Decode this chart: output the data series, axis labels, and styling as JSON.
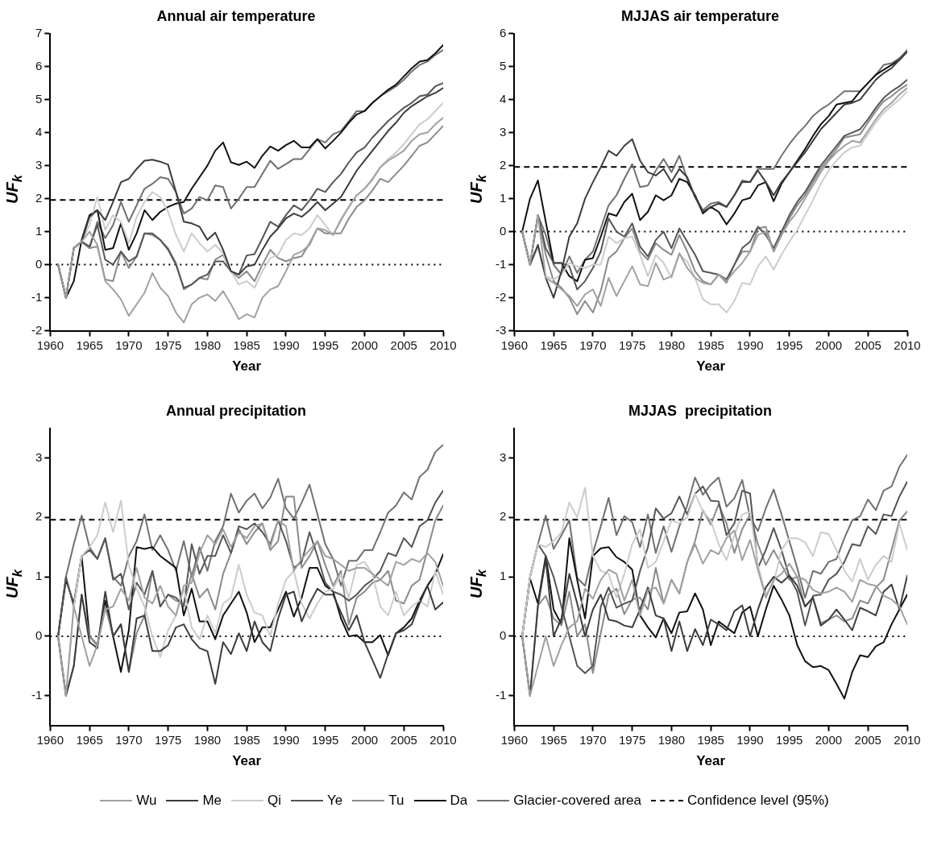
{
  "chart_data": [
    {
      "type": "line",
      "title": "Annual air temperature",
      "xlabel": "Year",
      "ylabel": "UF$_{k}$",
      "x": [
        1961,
        1962,
        1963,
        1964,
        1965,
        1966,
        1967,
        1968,
        1969,
        1970,
        1971,
        1972,
        1973,
        1974,
        1975,
        1976,
        1977,
        1978,
        1979,
        1980,
        1981,
        1982,
        1983,
        1984,
        1985,
        1986,
        1987,
        1988,
        1989,
        1990,
        1991,
        1992,
        1993,
        1994,
        1995,
        1996,
        1997,
        1998,
        1999,
        2000,
        2001,
        2002,
        2003,
        2004,
        2005,
        2006,
        2007,
        2008,
        2009,
        2010
      ],
      "xlim": [
        1960,
        2010
      ],
      "xticks": [
        1960,
        1965,
        1970,
        1975,
        1980,
        1985,
        1990,
        1995,
        2000,
        2005,
        2010
      ],
      "ylim": [
        -2,
        7
      ],
      "yticks": [
        -2,
        -1,
        0,
        1,
        2,
        3,
        4,
        5,
        6,
        7
      ],
      "grid": false,
      "legend": "bottom",
      "marker": "none",
      "series": [
        {
          "name": "Wu",
          "color": "#a0a0a0",
          "values": [
            0,
            -1,
            0.5,
            0.7,
            1.0,
            0.6,
            -0.5,
            -0.75,
            -1.05,
            -1.55,
            -1.2,
            -0.85,
            -0.25,
            -0.7,
            -0.95,
            -1.45,
            -1.75,
            -1.2,
            -1.0,
            -0.9,
            -1.1,
            -0.8,
            -1.2,
            -1.65,
            -1.5,
            -1.6,
            -1.0,
            -0.75,
            -0.65,
            -0.2,
            0.3,
            0.4,
            0.6,
            1.1,
            1.05,
            0.9,
            1.35,
            1.75,
            2.1,
            2.3,
            2.6,
            2.95,
            3.15,
            3.3,
            3.45,
            3.75,
            3.95,
            4.0,
            4.25,
            4.45
          ]
        },
        {
          "name": "Me",
          "color": "#3c3c3c",
          "values": [
            0,
            -1,
            0.5,
            0.7,
            1.45,
            1.65,
            1.35,
            1.9,
            2.5,
            2.6,
            2.9,
            3.15,
            3.18,
            3.12,
            3.03,
            2.2,
            1.3,
            1.25,
            1.15,
            0.75,
            0.97,
            0.45,
            -0.2,
            -0.3,
            -0.05,
            0,
            0.45,
            0.85,
            1.1,
            1.4,
            1.55,
            1.45,
            1.65,
            1.9,
            1.65,
            1.85,
            2.05,
            2.45,
            2.85,
            3.15,
            3.45,
            3.75,
            4.05,
            4.3,
            4.6,
            4.8,
            4.95,
            5.1,
            5.2,
            5.35
          ]
        },
        {
          "name": "Qi",
          "color": "#cccccc",
          "values": [
            0,
            -1,
            0.5,
            0.7,
            1.2,
            2.05,
            1.05,
            1.5,
            1.3,
            0.65,
            1.45,
            1.9,
            2.2,
            2.05,
            1.6,
            0.9,
            0.4,
            0.95,
            0.65,
            0.4,
            0.6,
            0.35,
            -0.2,
            -0.6,
            -0.5,
            -0.7,
            -0.2,
            0.2,
            0.3,
            0.75,
            0.95,
            0.9,
            1.1,
            1.5,
            1.2,
            0.9,
            1.4,
            1.75,
            2.1,
            2.3,
            2.55,
            2.95,
            3.2,
            3.4,
            3.65,
            3.95,
            4.25,
            4.4,
            4.65,
            4.9
          ]
        },
        {
          "name": "Ye",
          "color": "#555555",
          "values": [
            0,
            -1,
            0.5,
            0.7,
            0.55,
            1.2,
            0.15,
            0,
            0.4,
            0.1,
            0.25,
            0.95,
            0.95,
            0.75,
            0.45,
            0,
            -0.7,
            -0.6,
            -0.4,
            -0.3,
            0.1,
            0.1,
            -0.2,
            -0.3,
            0.28,
            0.32,
            0.8,
            1.3,
            1.15,
            1.5,
            1.8,
            1.65,
            1.95,
            2.3,
            2.2,
            2.5,
            2.75,
            3.1,
            3.4,
            3.55,
            3.85,
            4.1,
            4.35,
            4.55,
            4.75,
            4.9,
            5.1,
            5.15,
            5.4,
            5.5
          ]
        },
        {
          "name": "Tu",
          "color": "#8a8a8a",
          "values": [
            0,
            -1,
            0.5,
            0.7,
            0.5,
            0.55,
            -0.45,
            -0.5,
            0.4,
            -0.1,
            0.25,
            0.95,
            0.9,
            0.75,
            0.5,
            0.05,
            -0.75,
            -0.6,
            -0.4,
            -0.45,
            0.15,
            0.3,
            -0.2,
            -0.4,
            -0.2,
            -0.5,
            0,
            0.45,
            0.2,
            0.1,
            0.2,
            0.25,
            0.65,
            1.1,
            0.95,
            0.95,
            0.95,
            1.4,
            1.75,
            1.95,
            2.25,
            2.6,
            2.5,
            2.75,
            3.0,
            3.3,
            3.6,
            3.7,
            3.95,
            4.2
          ]
        },
        {
          "name": "Da",
          "color": "#111111",
          "values": [
            0,
            -1,
            -0.5,
            0.75,
            1.5,
            1.65,
            0.45,
            0.5,
            1.25,
            0.45,
            0.95,
            1.65,
            1.35,
            1.6,
            1.75,
            1.85,
            1.9,
            2.3,
            2.65,
            3.0,
            3.45,
            3.7,
            3.1,
            3.02,
            3.12,
            2.93,
            3.3,
            3.58,
            3.45,
            3.62,
            3.75,
            3.55,
            3.55,
            3.8,
            3.52,
            3.75,
            4.0,
            4.3,
            4.55,
            4.65,
            4.9,
            5.1,
            5.3,
            5.45,
            5.7,
            5.95,
            6.15,
            6.2,
            6.4,
            6.65
          ]
        },
        {
          "name": "Glacier-covered area",
          "color": "#707070",
          "values": [
            0,
            -1,
            0.5,
            0.7,
            0.5,
            1.3,
            0.8,
            1.2,
            1.9,
            1.3,
            1.8,
            2.3,
            2.45,
            2.65,
            2.6,
            2.2,
            1.55,
            1.7,
            2.05,
            1.95,
            2.4,
            2.35,
            1.7,
            2.0,
            2.35,
            2.35,
            2.75,
            3.15,
            2.9,
            3.05,
            3.2,
            3.2,
            3.5,
            3.8,
            3.7,
            3.95,
            4.05,
            4.35,
            4.65,
            4.65,
            4.9,
            5.1,
            5.25,
            5.4,
            5.6,
            5.85,
            6.05,
            6.15,
            6.35,
            6.5
          ]
        }
      ],
      "ref_lines": [
        {
          "axis": "y",
          "value": 1.96,
          "label": "Confidence level (95%)",
          "line_style": "dashed",
          "color": "#000000"
        },
        {
          "axis": "y",
          "value": 0,
          "line_style": "dotted",
          "color": "#000000"
        }
      ]
    },
    {
      "type": "line",
      "title": "MJJAS air temperature",
      "xlabel": "Year",
      "ylabel": "UF$_{k}$",
      "x": [
        1961,
        1962,
        1963,
        1964,
        1965,
        1966,
        1967,
        1968,
        1969,
        1970,
        1971,
        1972,
        1973,
        1974,
        1975,
        1976,
        1977,
        1978,
        1979,
        1980,
        1981,
        1982,
        1983,
        1984,
        1985,
        1986,
        1987,
        1988,
        1989,
        1990,
        1991,
        1992,
        1993,
        1994,
        1995,
        1996,
        1997,
        1998,
        1999,
        2000,
        2001,
        2002,
        2003,
        2004,
        2005,
        2006,
        2007,
        2008,
        2009,
        2010
      ],
      "xlim": [
        1960,
        2010
      ],
      "xticks": [
        1960,
        1965,
        1970,
        1975,
        1980,
        1985,
        1990,
        1995,
        2000,
        2005,
        2010
      ],
      "ylim": [
        -3,
        6
      ],
      "yticks": [
        -3,
        -2,
        -1,
        0,
        1,
        2,
        3,
        4,
        5,
        6
      ],
      "grid": false,
      "legend": false,
      "marker": "none",
      "series": [
        {
          "color": "#a0a0a0",
          "values": [
            0,
            -1,
            0.5,
            -1.4,
            -1.55,
            -1.75,
            -1.95,
            -2.25,
            -1.9,
            -1.75,
            -2.25,
            -1.4,
            -1.95,
            -1.5,
            -1.05,
            -1.6,
            -1.65,
            -0.95,
            -1.45,
            -1.35,
            -0.65,
            -1.1,
            -1.4,
            -1.55,
            -1.6,
            -1.3,
            -1.5,
            -1.2,
            -0.95,
            -0.6,
            -0.1,
            0,
            -0.6,
            -0.1,
            0.3,
            0.6,
            1.0,
            1.4,
            1.8,
            2.15,
            2.4,
            2.6,
            2.75,
            2.7,
            3.05,
            3.4,
            3.7,
            3.9,
            4.15,
            4.35
          ]
        },
        {
          "color": "#3c3c3c",
          "values": [
            0,
            -1,
            -0.4,
            -1.4,
            -2.0,
            -1.2,
            -0.15,
            0.25,
            1.0,
            1.5,
            1.95,
            2.45,
            2.3,
            2.6,
            2.8,
            2.15,
            1.8,
            1.7,
            1.9,
            1.5,
            1.9,
            1.65,
            1.05,
            0.6,
            0.75,
            0.85,
            0.75,
            1.1,
            1.5,
            1.5,
            1.85,
            1.5,
            1.1,
            1.5,
            1.8,
            2.1,
            2.4,
            2.75,
            3.1,
            3.35,
            3.6,
            3.85,
            3.9,
            4.0,
            4.3,
            4.6,
            4.8,
            4.95,
            5.2,
            5.45
          ]
        },
        {
          "color": "#cccccc",
          "values": [
            0,
            -1,
            -0.5,
            -1.35,
            -1.45,
            -1.3,
            -0.95,
            -1.05,
            -1.1,
            -1.0,
            -1.0,
            -0.15,
            -0.35,
            -0.2,
            -0.15,
            -0.7,
            -1.35,
            -0.7,
            -0.95,
            -1.4,
            -0.7,
            -0.9,
            -1.4,
            -2.05,
            -2.2,
            -2.2,
            -2.45,
            -2.1,
            -1.55,
            -1.6,
            -1.05,
            -0.75,
            -1.15,
            -0.7,
            -0.3,
            0.05,
            0.5,
            0.95,
            1.45,
            1.85,
            2.15,
            2.4,
            2.55,
            2.6,
            2.95,
            3.3,
            3.6,
            3.8,
            4.0,
            4.25
          ]
        },
        {
          "color": "#555555",
          "values": [
            0,
            -1,
            0.5,
            -0.5,
            -0.95,
            -0.95,
            -1.05,
            -1.75,
            -1.5,
            -1.1,
            -0.6,
            0.4,
            0,
            -0.15,
            0.25,
            -0.45,
            -0.75,
            -0.25,
            0,
            -0.5,
            0.1,
            -0.3,
            -0.7,
            -1.2,
            -1.25,
            -1.3,
            -1.45,
            -1.0,
            -0.5,
            -0.3,
            0.15,
            -0.1,
            -0.5,
            0,
            0.5,
            0.9,
            1.2,
            1.6,
            2.0,
            2.3,
            2.6,
            2.9,
            3.0,
            3.1,
            3.4,
            3.75,
            4.05,
            4.25,
            4.4,
            4.6
          ]
        },
        {
          "color": "#8a8a8a",
          "values": [
            0,
            -1,
            0.45,
            -0.7,
            -1.5,
            -1.7,
            -2.0,
            -2.5,
            -2.1,
            -2.45,
            -1.8,
            -0.8,
            -0.6,
            -0.2,
            0.1,
            -0.6,
            -0.85,
            -0.35,
            -0.55,
            -0.7,
            -0.1,
            -0.6,
            -1.2,
            -1.5,
            -1.6,
            -1.3,
            -1.55,
            -1.0,
            -0.6,
            -0.6,
            0.1,
            0.15,
            -0.6,
            -0.1,
            0.4,
            0.8,
            1.1,
            1.5,
            1.9,
            2.2,
            2.5,
            2.85,
            2.9,
            2.95,
            3.3,
            3.65,
            3.95,
            4.1,
            4.3,
            4.45
          ]
        },
        {
          "color": "#111111",
          "values": [
            0,
            1.0,
            1.55,
            0.3,
            -0.95,
            -0.95,
            -1.35,
            -1.5,
            -0.85,
            -0.8,
            -0.15,
            0.55,
            0.48,
            0.9,
            1.15,
            0.35,
            0.6,
            1.1,
            0.95,
            1.1,
            1.6,
            1.5,
            1.1,
            0.55,
            0.75,
            0.6,
            0.22,
            0.55,
            0.95,
            1.02,
            1.4,
            1.5,
            0.92,
            1.45,
            1.8,
            2.15,
            2.5,
            2.9,
            3.25,
            3.5,
            3.85,
            3.9,
            3.95,
            4.25,
            4.5,
            4.75,
            4.9,
            5.05,
            5.2,
            5.45
          ]
        },
        {
          "color": "#707070",
          "values": [
            0,
            -1,
            0.5,
            -0.1,
            -1.0,
            -1.3,
            -0.75,
            -1.25,
            -0.85,
            -0.6,
            0.1,
            0.8,
            1.1,
            1.6,
            2.05,
            1.35,
            1.4,
            1.85,
            2.2,
            1.8,
            2.3,
            1.6,
            1.05,
            0.65,
            0.85,
            0.9,
            0.75,
            1.1,
            1.55,
            1.5,
            1.9,
            1.9,
            1.9,
            2.3,
            2.65,
            2.95,
            3.2,
            3.5,
            3.7,
            3.85,
            4.05,
            4.25,
            4.25,
            4.25,
            4.5,
            4.75,
            5.05,
            5.1,
            5.25,
            5.5
          ]
        }
      ],
      "ref_lines": [
        {
          "axis": "y",
          "value": 1.96,
          "line_style": "dashed",
          "color": "#000000"
        },
        {
          "axis": "y",
          "value": 0,
          "line_style": "dotted",
          "color": "#000000"
        }
      ]
    },
    {
      "type": "line",
      "title": "Annual precipitation",
      "xlabel": "Year",
      "ylabel": "UF$_{k}$",
      "x": [
        1961,
        1962,
        1963,
        1964,
        1965,
        1966,
        1967,
        1968,
        1969,
        1970,
        1971,
        1972,
        1973,
        1974,
        1975,
        1976,
        1977,
        1978,
        1979,
        1980,
        1981,
        1982,
        1983,
        1984,
        1985,
        1986,
        1987,
        1988,
        1989,
        1990,
        1991,
        1992,
        1993,
        1994,
        1995,
        1996,
        1997,
        1998,
        1999,
        2000,
        2001,
        2002,
        2003,
        2004,
        2005,
        2006,
        2007,
        2008,
        2009,
        2010
      ],
      "xlim": [
        1960,
        2010
      ],
      "xticks": [
        1960,
        1965,
        1970,
        1975,
        1980,
        1985,
        1990,
        1995,
        2000,
        2005,
        2010
      ],
      "ylim": [
        -1.5,
        3.5
      ],
      "yticks": [
        -1,
        0,
        1,
        2,
        3
      ],
      "grid": false,
      "legend": false,
      "marker": "none",
      "series": [
        {
          "color": "#a0a0a0",
          "values": [
            0,
            -1,
            0.5,
            0,
            -0.5,
            -0.15,
            0.45,
            0.5,
            0.8,
            0.6,
            1.15,
            0.65,
            0.55,
            0.85,
            0.5,
            0.35,
            0.85,
            0.9,
            1.4,
            1.7,
            1.55,
            1.8,
            1.5,
            1.75,
            1.65,
            1.85,
            1.9,
            1.5,
            1.95,
            1.85,
            1.1,
            1.3,
            1.45,
            1.6,
            1.35,
            1.3,
            1.2,
            1.1,
            1.15,
            1.15,
            1.05,
            0.95,
            0.85,
            1.25,
            1.2,
            1.3,
            1.25,
            1.4,
            1.25,
            0.85
          ]
        },
        {
          "color": "#3c3c3c",
          "values": [
            0,
            -1,
            -0.5,
            0.7,
            -0.1,
            -0.2,
            0.75,
            0,
            0.2,
            -0.6,
            0.3,
            0.35,
            -0.25,
            -0.25,
            -0.15,
            0.15,
            0.2,
            -0.05,
            -0.2,
            -0.25,
            -0.8,
            -0.1,
            -0.3,
            0.05,
            -0.25,
            0.25,
            -0.1,
            -0.25,
            0.3,
            0.7,
            0.75,
            0.25,
            0.55,
            0.8,
            0.7,
            0.7,
            0.4,
            0.1,
            0.35,
            -0.1,
            -0.4,
            -0.7,
            -0.3,
            0.05,
            0.1,
            0.2,
            0.55,
            0.85,
            0.45,
            0.57
          ]
        },
        {
          "color": "#cccccc",
          "values": [
            0,
            -1,
            0.5,
            1.35,
            1.5,
            1.7,
            2.25,
            1.75,
            2.28,
            1.2,
            0.8,
            0.5,
            0,
            -0.35,
            0.1,
            0.35,
            0.8,
            0.15,
            -0.05,
            0.35,
            0.05,
            0.55,
            0.65,
            1.2,
            0.7,
            0.4,
            0.35,
            0,
            0.55,
            0.95,
            1.1,
            0.55,
            0.3,
            0.55,
            0.75,
            0.8,
            1.05,
            0.65,
            1.2,
            1.25,
            1.05,
            0.5,
            0.35,
            0.75,
            0.35,
            0.5,
            0.6,
            0.5,
            1.1,
            0.7
          ]
        },
        {
          "color": "#555555",
          "values": [
            0,
            1.0,
            0.5,
            1.35,
            1.45,
            1.3,
            1.65,
            0.95,
            1.05,
            0.45,
            0.9,
            0.7,
            1.1,
            0.5,
            0.7,
            0.65,
            0.5,
            1.55,
            1.05,
            1.35,
            1.35,
            1.7,
            1.4,
            1.85,
            1.8,
            1.9,
            1.75,
            1.55,
            1.95,
            1.6,
            1.15,
            1.25,
            1.75,
            1.35,
            0.9,
            0.75,
            0.7,
            0.6,
            0.7,
            0.85,
            0.95,
            1.1,
            1.4,
            1.35,
            1.65,
            1.5,
            1.85,
            1.95,
            2.25,
            2.45
          ]
        },
        {
          "color": "#8a8a8a",
          "values": [
            0,
            -1,
            -0.5,
            0.7,
            0,
            -0.15,
            0.5,
            0,
            0.2,
            -0.6,
            0.05,
            0.35,
            1.1,
            0.5,
            0.7,
            0.6,
            0.55,
            1.05,
            0.65,
            0.8,
            0.45,
            1.05,
            1.4,
            1.8,
            1.55,
            1.75,
            1.9,
            1.45,
            1.6,
            2.35,
            2.35,
            1.15,
            1.35,
            1.6,
            1.2,
            0.85,
            1.1,
            0.2,
            0.65,
            0.75,
            0.9,
            0.95,
            1.1,
            0.6,
            0.55,
            0.85,
            0.95,
            1.45,
            1.95,
            2.2
          ]
        },
        {
          "color": "#111111",
          "values": [
            0,
            0.95,
            0.55,
            1.35,
            0,
            -0.15,
            0.6,
            0,
            -0.6,
            0.1,
            1.5,
            1.47,
            1.5,
            1.35,
            1.25,
            1.15,
            0.35,
            0.8,
            0.25,
            0.25,
            -0.05,
            0.35,
            0.55,
            0.75,
            0.4,
            -0.1,
            0.15,
            0.15,
            0.45,
            0.75,
            0.33,
            0.65,
            1.15,
            1.15,
            0.85,
            0.75,
            0.3,
            0,
            0.02,
            -0.1,
            -0.1,
            0.02,
            -0.32,
            0.05,
            0.15,
            0.3,
            0.6,
            0.85,
            1.05,
            1.38
          ]
        },
        {
          "color": "#707070",
          "values": [
            0,
            1.0,
            1.55,
            2.03,
            1.5,
            1.3,
            1.65,
            1.0,
            0.85,
            1.35,
            1.6,
            2.05,
            1.45,
            1.7,
            1.45,
            1.1,
            1.6,
            1.0,
            1.5,
            1.1,
            1.6,
            1.85,
            2.4,
            2.08,
            2.28,
            2.4,
            2.15,
            2.33,
            2.65,
            2.15,
            1.98,
            2.25,
            2.55,
            2.05,
            1.55,
            1.3,
            0.85,
            1.27,
            1.27,
            1.45,
            1.45,
            1.75,
            2.08,
            2.2,
            2.42,
            2.3,
            2.68,
            2.8,
            3.1,
            3.22
          ]
        }
      ],
      "ref_lines": [
        {
          "axis": "y",
          "value": 1.96,
          "line_style": "dashed",
          "color": "#000000"
        },
        {
          "axis": "y",
          "value": 0,
          "line_style": "dotted",
          "color": "#000000"
        }
      ]
    },
    {
      "type": "line",
      "title": "MJJAS  precipitation",
      "xlabel": "Year",
      "ylabel": "UF$_{k}$",
      "x": [
        1961,
        1962,
        1963,
        1964,
        1965,
        1966,
        1967,
        1968,
        1969,
        1970,
        1971,
        1972,
        1973,
        1974,
        1975,
        1976,
        1977,
        1978,
        1979,
        1980,
        1981,
        1982,
        1983,
        1984,
        1985,
        1986,
        1987,
        1988,
        1989,
        1990,
        1991,
        1992,
        1993,
        1994,
        1995,
        1996,
        1997,
        1998,
        1999,
        2000,
        2001,
        2002,
        2003,
        2004,
        2005,
        2006,
        2007,
        2008,
        2009,
        2010
      ],
      "xlim": [
        1960,
        2010
      ],
      "xticks": [
        1960,
        1965,
        1970,
        1975,
        1980,
        1985,
        1990,
        1995,
        2000,
        2005,
        2010
      ],
      "ylim": [
        -1.5,
        3.5
      ],
      "yticks": [
        -1,
        0,
        1,
        2,
        3
      ],
      "grid": false,
      "legend": false,
      "marker": "none",
      "series": [
        {
          "color": "#a0a0a0",
          "values": [
            0,
            -1,
            -0.5,
            0,
            -0.5,
            -0.15,
            0.15,
            0.25,
            0.8,
            0.63,
            0.95,
            1.12,
            1.05,
            0.6,
            0.95,
            0.35,
            0.78,
            0.82,
            0.55,
            0.95,
            0.72,
            1.25,
            1.55,
            1.22,
            1.45,
            1.38,
            1.65,
            1.78,
            1.28,
            1.62,
            1.12,
            0.65,
            0.95,
            1.05,
            1.22,
            1.0,
            0.95,
            0.78,
            0.72,
            0.75,
            0.82,
            0.75,
            0.58,
            0.95,
            0.88,
            0.85,
            0.68,
            0.62,
            0.5,
            0.2
          ]
        },
        {
          "color": "#3c3c3c",
          "values": [
            0,
            -1,
            0.5,
            1.3,
            0,
            0.3,
            1.05,
            0.55,
            0,
            0.45,
            0.7,
            0.28,
            0.25,
            0.18,
            0.15,
            0.45,
            0.82,
            0.35,
            0.3,
            -0.25,
            0.25,
            -0.25,
            0.12,
            -0.15,
            0.28,
            0.2,
            0.1,
            0.42,
            0.52,
            0.0,
            0.45,
            0.82,
            1.0,
            0.9,
            1.02,
            0.85,
            0.5,
            0.65,
            0.18,
            0.28,
            0.45,
            0.28,
            0.1,
            0.48,
            0.42,
            0.35,
            0.75,
            0.87,
            0.45,
            1.02
          ]
        },
        {
          "color": "#cccccc",
          "values": [
            0,
            1.0,
            1.55,
            1.5,
            1.6,
            1.75,
            2.25,
            2.0,
            2.5,
            1.35,
            1.1,
            1.05,
            0.65,
            1.05,
            1.55,
            1.8,
            1.15,
            1.25,
            1.6,
            1.95,
            1.9,
            2.0,
            2.4,
            2.1,
            1.95,
            1.55,
            1.28,
            1.7,
            2.05,
            2.1,
            1.2,
            0.7,
            0.9,
            1.45,
            1.65,
            1.65,
            1.58,
            1.35,
            1.75,
            1.72,
            1.45,
            1.1,
            0.92,
            1.3,
            0.95,
            1.2,
            1.35,
            1.25,
            1.9,
            1.45
          ]
        },
        {
          "color": "#555555",
          "values": [
            0,
            1.0,
            1.55,
            1.35,
            1.0,
            0.5,
            0.0,
            -0.5,
            -0.62,
            -0.5,
            0.5,
            0.82,
            0.48,
            0.55,
            0.6,
            1.1,
            1.5,
            2.15,
            1.98,
            2.07,
            2.35,
            2.05,
            2.4,
            2.52,
            2.28,
            2.27,
            1.7,
            1.9,
            2.45,
            2.4,
            1.15,
            1.45,
            1.82,
            1.45,
            1.0,
            0.75,
            0.18,
            0.68,
            0.7,
            0.95,
            1.05,
            1.25,
            1.55,
            1.52,
            1.85,
            1.72,
            2.05,
            2.02,
            2.35,
            2.6
          ]
        },
        {
          "color": "#8a8a8a",
          "values": [
            0,
            -1,
            0.52,
            0.68,
            0.3,
            0.18,
            0.75,
            0.0,
            0.2,
            -0.62,
            0.05,
            0.7,
            0.8,
            0.37,
            0.62,
            0.65,
            0.45,
            1.15,
            0.55,
            0.95,
            0.72,
            1.25,
            1.6,
            2.12,
            1.88,
            2.22,
            1.9,
            1.4,
            1.8,
            2.05,
            1.55,
            1.2,
            1.45,
            1.2,
            0.95,
            1.0,
            0.5,
            0.65,
            0.22,
            0.28,
            0.35,
            0.25,
            0.3,
            0.6,
            0.55,
            0.82,
            0.95,
            1.45,
            1.95,
            2.1
          ]
        },
        {
          "color": "#111111",
          "values": [
            0,
            0.97,
            0.55,
            1.35,
            0.45,
            0.2,
            1.65,
            0.95,
            0.3,
            1.35,
            1.48,
            1.5,
            1.33,
            1.25,
            1.12,
            0.35,
            0.15,
            -0.02,
            0.3,
            0.05,
            0.4,
            0.42,
            0.72,
            0.45,
            -0.15,
            0.25,
            0.15,
            0.05,
            0.4,
            0.5,
            0.0,
            0.45,
            0.85,
            0.62,
            0.35,
            -0.15,
            -0.42,
            -0.52,
            -0.5,
            -0.57,
            -0.8,
            -1.05,
            -0.6,
            -0.32,
            -0.35,
            -0.17,
            -0.1,
            0.2,
            0.45,
            0.7
          ]
        },
        {
          "color": "#707070",
          "values": [
            0,
            1.0,
            1.55,
            2.03,
            1.47,
            1.7,
            1.95,
            0.98,
            0.85,
            1.4,
            1.85,
            2.33,
            1.7,
            2.02,
            1.92,
            1.5,
            2.05,
            1.4,
            1.85,
            1.42,
            1.85,
            2.2,
            2.67,
            2.38,
            2.55,
            2.67,
            2.18,
            2.32,
            2.63,
            2.0,
            1.77,
            2.15,
            2.47,
            2.05,
            1.6,
            1.15,
            0.65,
            1.1,
            1.05,
            1.25,
            1.3,
            1.65,
            1.95,
            2.02,
            2.3,
            2.12,
            2.45,
            2.52,
            2.85,
            3.05
          ]
        }
      ],
      "ref_lines": [
        {
          "axis": "y",
          "value": 1.96,
          "line_style": "dashed",
          "color": "#000000"
        },
        {
          "axis": "y",
          "value": 0,
          "line_style": "dotted",
          "color": "#000000"
        }
      ]
    }
  ]
}
